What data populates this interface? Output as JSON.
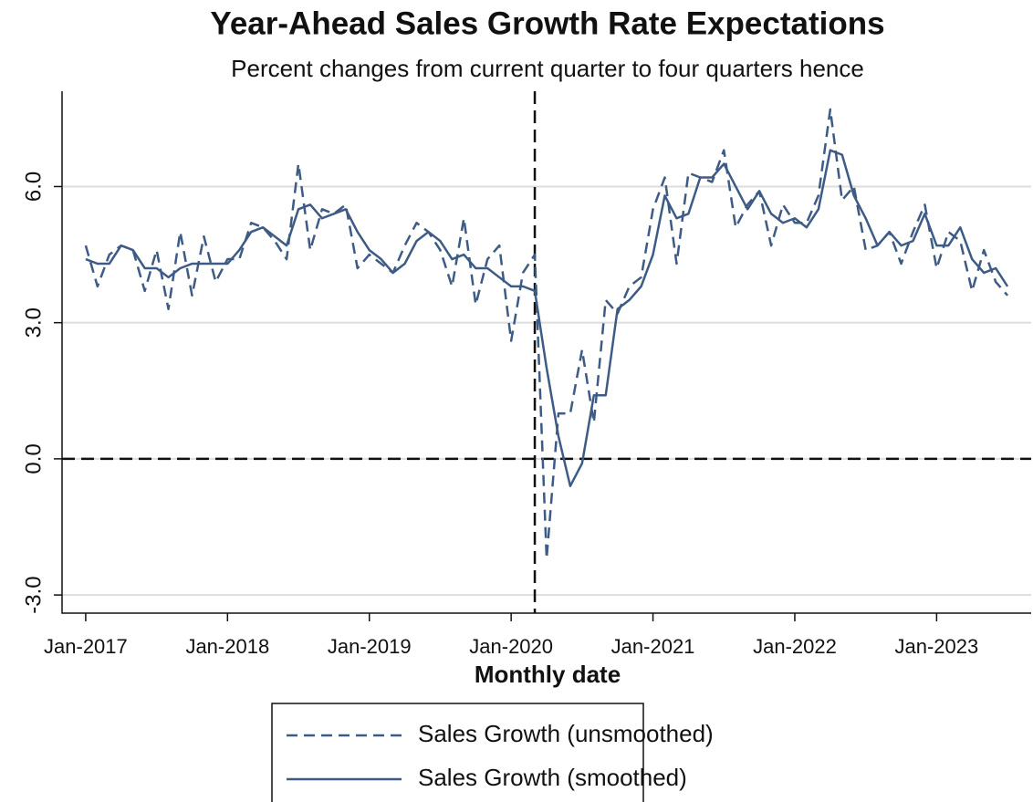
{
  "chart_data": {
    "type": "line",
    "title": "Year-Ahead Sales Growth Rate Expectations",
    "subtitle": "Percent changes from current quarter to four quarters hence",
    "x_label": "Monthly date",
    "x": [
      "2017-01",
      "2017-02",
      "2017-03",
      "2017-04",
      "2017-05",
      "2017-06",
      "2017-07",
      "2017-08",
      "2017-09",
      "2017-10",
      "2017-11",
      "2017-12",
      "2018-01",
      "2018-02",
      "2018-03",
      "2018-04",
      "2018-05",
      "2018-06",
      "2018-07",
      "2018-08",
      "2018-09",
      "2018-10",
      "2018-11",
      "2018-12",
      "2019-01",
      "2019-02",
      "2019-03",
      "2019-04",
      "2019-05",
      "2019-06",
      "2019-07",
      "2019-08",
      "2019-09",
      "2019-10",
      "2019-11",
      "2019-12",
      "2020-01",
      "2020-02",
      "2020-03",
      "2020-04",
      "2020-05",
      "2020-06",
      "2020-07",
      "2020-08",
      "2020-09",
      "2020-10",
      "2020-11",
      "2020-12",
      "2021-01",
      "2021-02",
      "2021-03",
      "2021-04",
      "2021-05",
      "2021-06",
      "2021-07",
      "2021-08",
      "2021-09",
      "2021-10",
      "2021-11",
      "2021-12",
      "2022-01",
      "2022-02",
      "2022-03",
      "2022-04",
      "2022-05",
      "2022-06",
      "2022-07",
      "2022-08",
      "2022-09",
      "2022-10",
      "2022-11",
      "2022-12",
      "2023-01",
      "2023-02",
      "2023-03",
      "2023-04",
      "2023-05",
      "2023-06",
      "2023-07"
    ],
    "series": [
      {
        "name": "Sales Growth (unsmoothed)",
        "color": "#3d5b84",
        "style": "dashed",
        "values": [
          4.7,
          3.8,
          4.5,
          4.7,
          4.6,
          3.7,
          4.6,
          3.3,
          5.0,
          3.6,
          4.9,
          3.9,
          4.4,
          4.4,
          5.2,
          5.1,
          4.8,
          4.4,
          6.5,
          4.6,
          5.5,
          5.4,
          5.6,
          4.2,
          4.5,
          4.3,
          4.1,
          4.7,
          5.2,
          5.0,
          4.6,
          3.8,
          5.3,
          3.4,
          4.4,
          4.7,
          2.6,
          4.1,
          4.5,
          -2.2,
          1.0,
          1.0,
          2.4,
          0.8,
          3.5,
          3.2,
          3.8,
          4.0,
          5.5,
          6.2,
          4.3,
          6.3,
          6.2,
          6.1,
          6.8,
          5.1,
          5.6,
          5.9,
          4.7,
          5.6,
          5.2,
          5.2,
          5.8,
          7.7,
          5.7,
          6.0,
          4.6,
          4.7,
          5.0,
          4.3,
          5.0,
          5.6,
          4.2,
          5.0,
          4.8,
          3.7,
          4.6,
          3.9,
          3.6
        ]
      },
      {
        "name": "Sales Growth (smoothed)",
        "color": "#3d5b84",
        "style": "solid",
        "values": [
          4.4,
          4.3,
          4.3,
          4.7,
          4.6,
          4.2,
          4.2,
          4.0,
          4.2,
          4.3,
          4.3,
          4.3,
          4.3,
          4.6,
          5.0,
          5.1,
          4.9,
          4.7,
          5.5,
          5.6,
          5.3,
          5.4,
          5.5,
          5.0,
          4.6,
          4.4,
          4.1,
          4.3,
          4.8,
          5.0,
          4.8,
          4.4,
          4.5,
          4.2,
          4.2,
          4.0,
          3.8,
          3.8,
          3.7,
          2.0,
          0.5,
          -0.6,
          -0.1,
          1.4,
          1.4,
          3.3,
          3.5,
          3.8,
          4.5,
          5.8,
          5.3,
          5.4,
          6.2,
          6.2,
          6.5,
          6.0,
          5.5,
          5.9,
          5.4,
          5.2,
          5.3,
          5.1,
          5.5,
          6.8,
          6.7,
          5.8,
          5.3,
          4.7,
          5.0,
          4.7,
          4.8,
          5.4,
          4.7,
          4.7,
          5.1,
          4.4,
          4.1,
          4.2,
          3.8
        ]
      }
    ],
    "xlim": [
      "2016-11",
      "2023-09"
    ],
    "xticks": [
      {
        "value": "2017-01",
        "label": "Jan-2017"
      },
      {
        "value": "2018-01",
        "label": "Jan-2018"
      },
      {
        "value": "2019-01",
        "label": "Jan-2019"
      },
      {
        "value": "2020-01",
        "label": "Jan-2020"
      },
      {
        "value": "2021-01",
        "label": "Jan-2021"
      },
      {
        "value": "2022-01",
        "label": "Jan-2022"
      },
      {
        "value": "2023-01",
        "label": "Jan-2023"
      }
    ],
    "ylim": [
      -3.4,
      8.1
    ],
    "yticks": [
      {
        "value": -3,
        "label": "-3.0"
      },
      {
        "value": 0,
        "label": "0.0"
      },
      {
        "value": 3,
        "label": "3.0"
      },
      {
        "value": 6,
        "label": "6.0"
      }
    ],
    "hline": 0,
    "vline": "2020-03",
    "grid": true,
    "legend": "bottom"
  }
}
